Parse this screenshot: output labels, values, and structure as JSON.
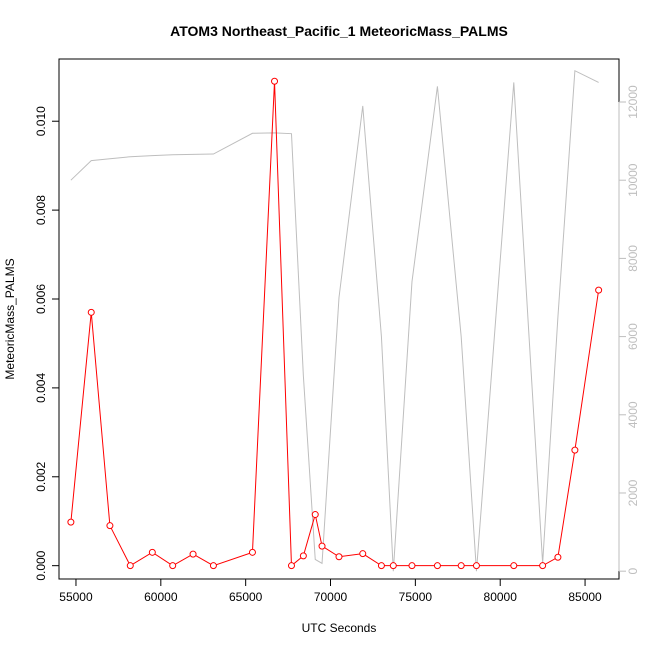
{
  "chart_data": {
    "type": "line",
    "title": "ATOM3 Northeast_Pacific_1 MeteoricMass_PALMS",
    "xlabel": "UTC Seconds",
    "ylabel": "MeteoricMass_PALMS",
    "xlim": [
      54000,
      87000
    ],
    "ylim": [
      -0.0003,
      0.0114
    ],
    "y2lim": [
      -200,
      13100
    ],
    "x_ticks": [
      55000,
      60000,
      65000,
      70000,
      75000,
      80000,
      85000
    ],
    "y_ticks": [
      0.0,
      0.002,
      0.004,
      0.006,
      0.008,
      0.01
    ],
    "y_tick_labels": [
      "0.000",
      "0.002",
      "0.004",
      "0.006",
      "0.008",
      "0.010"
    ],
    "y2_ticks": [
      0,
      2000,
      4000,
      6000,
      8000,
      10000,
      12000
    ],
    "grid": false,
    "legend": "none",
    "series": [
      {
        "color": "#ff0000",
        "axis": "left",
        "marker": "open-circle",
        "x": [
          54700,
          55900,
          57000,
          58200,
          59500,
          60700,
          61900,
          63100,
          65400,
          66700,
          67700,
          68400,
          69100,
          69500,
          70500,
          71900,
          73000,
          73700,
          74800,
          76300,
          77700,
          78600,
          80800,
          82500,
          83400,
          84400,
          85800
        ],
        "y": [
          0.00098,
          0.0057,
          0.0009,
          0.0,
          0.0003,
          0.0,
          0.00026,
          0.0,
          0.0003,
          0.0109,
          0.0,
          0.00022,
          0.00115,
          0.00044,
          0.0002,
          0.00027,
          0.0,
          0.0,
          0.0,
          0.0,
          0.0,
          0.0,
          0.0,
          0.0,
          0.00019,
          0.0026,
          0.0062
        ]
      },
      {
        "color": "#bebebe",
        "axis": "right",
        "marker": "none",
        "x": [
          54700,
          55900,
          57000,
          58200,
          59500,
          60700,
          61900,
          63100,
          65400,
          66700,
          67700,
          68400,
          69100,
          69500,
          70500,
          71900,
          73000,
          73700,
          74800,
          76300,
          77700,
          78600,
          80800,
          82500,
          83400,
          84400,
          85800
        ],
        "y": [
          10000,
          10500,
          10550,
          10600,
          10630,
          10650,
          10660,
          10670,
          11200,
          11210,
          11190,
          5000,
          300,
          200,
          7000,
          11900,
          6000,
          0,
          7400,
          12400,
          6000,
          0,
          12500,
          200,
          6500,
          12800,
          12500
        ]
      }
    ]
  }
}
